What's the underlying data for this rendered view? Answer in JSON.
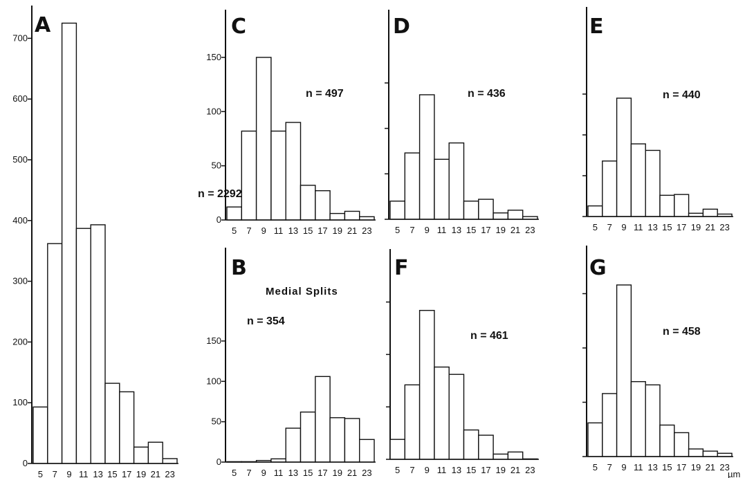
{
  "chart_data": [
    {
      "type": "bar",
      "panel": "A",
      "annotation": "n = 2292",
      "categories": [
        "5",
        "7",
        "9",
        "11",
        "13",
        "15",
        "17",
        "19",
        "21",
        "23"
      ],
      "values": [
        93,
        362,
        725,
        387,
        393,
        132,
        118,
        27,
        35,
        8
      ],
      "y_ticks": [
        "0",
        "100",
        "200",
        "300",
        "400",
        "500",
        "600",
        "700"
      ],
      "ylim": [
        0,
        760
      ],
      "x_unit": "µm"
    },
    {
      "type": "bar",
      "panel": "C",
      "annotation": "n = 497",
      "categories": [
        "5",
        "7",
        "9",
        "11",
        "13",
        "15",
        "17",
        "19",
        "21",
        "23"
      ],
      "values": [
        12,
        82,
        150,
        82,
        90,
        32,
        27,
        6,
        8,
        3
      ],
      "y_ticks": [
        "0",
        "50",
        "100",
        "150"
      ],
      "ylim": [
        0,
        175
      ],
      "x_unit": ""
    },
    {
      "type": "bar",
      "panel": "D",
      "annotation": "n = 436",
      "categories": [
        "5",
        "7",
        "9",
        "11",
        "13",
        "15",
        "17",
        "19",
        "21",
        "23"
      ],
      "values": [
        20,
        73,
        137,
        66,
        84,
        20,
        22,
        7,
        10,
        3
      ],
      "y_ticks": [],
      "ylim": [
        0,
        175
      ],
      "x_unit": ""
    },
    {
      "type": "bar",
      "panel": "E",
      "annotation": "n = 440",
      "categories": [
        "5",
        "7",
        "9",
        "11",
        "13",
        "15",
        "17",
        "19",
        "21",
        "23"
      ],
      "values": [
        13,
        68,
        145,
        89,
        81,
        26,
        27,
        4,
        9,
        3
      ],
      "y_ticks": [],
      "ylim": [
        0,
        175
      ],
      "x_unit": ""
    },
    {
      "type": "bar",
      "panel": "B",
      "annotation": "n = 354",
      "subtitle": "Medial Splits",
      "categories": [
        "5",
        "7",
        "9",
        "11",
        "13",
        "15",
        "17",
        "19",
        "21",
        "23"
      ],
      "values": [
        0,
        0,
        2,
        4,
        42,
        62,
        106,
        55,
        54,
        28
      ],
      "y_ticks": [
        "0",
        "50",
        "100",
        "150"
      ],
      "ylim": [
        0,
        175
      ],
      "x_unit": ""
    },
    {
      "type": "bar",
      "panel": "F",
      "annotation": "n = 461",
      "categories": [
        "5",
        "7",
        "9",
        "11",
        "13",
        "15",
        "17",
        "19",
        "21",
        "23"
      ],
      "values": [
        19,
        71,
        142,
        88,
        81,
        28,
        23,
        5,
        7,
        0
      ],
      "y_ticks": [],
      "ylim": [
        0,
        175
      ],
      "x_unit": ""
    },
    {
      "type": "bar",
      "panel": "G",
      "annotation": "n = 458",
      "categories": [
        "5",
        "7",
        "9",
        "11",
        "13",
        "15",
        "17",
        "19",
        "21",
        "23"
      ],
      "values": [
        31,
        58,
        158,
        69,
        66,
        29,
        22,
        7,
        5,
        3
      ],
      "y_ticks": [],
      "ylim": [
        0,
        175
      ],
      "x_unit": ""
    }
  ]
}
